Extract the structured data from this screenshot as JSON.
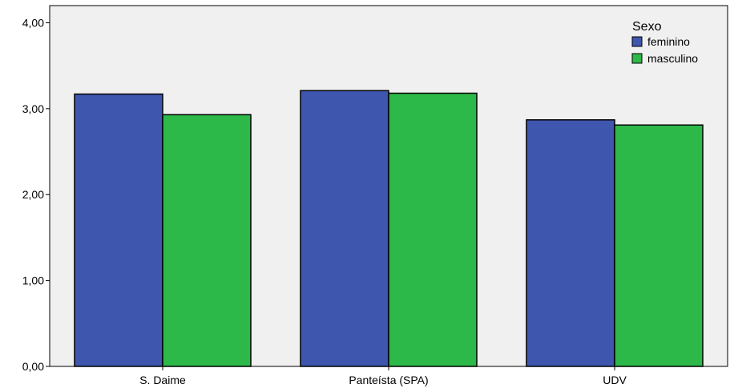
{
  "chart_data": {
    "type": "bar",
    "categories": [
      "S. Daime",
      "Panteísta (SPA)",
      "UDV"
    ],
    "series": [
      {
        "name": "feminino",
        "values": [
          3.17,
          3.21,
          2.87
        ],
        "color": "#3f56ae"
      },
      {
        "name": "masculino",
        "values": [
          2.93,
          3.18,
          2.81
        ],
        "color": "#2db84a"
      }
    ],
    "ylim": [
      0,
      4.2
    ],
    "yticks": [
      0,
      1,
      2,
      3,
      4
    ],
    "ytick_labels": [
      "0,00",
      "1,00",
      "2,00",
      "3,00",
      "4,00"
    ],
    "legend": {
      "title": "Sexo",
      "position": "top-right"
    },
    "plot_background": "#f0f0f0",
    "grid": false
  }
}
